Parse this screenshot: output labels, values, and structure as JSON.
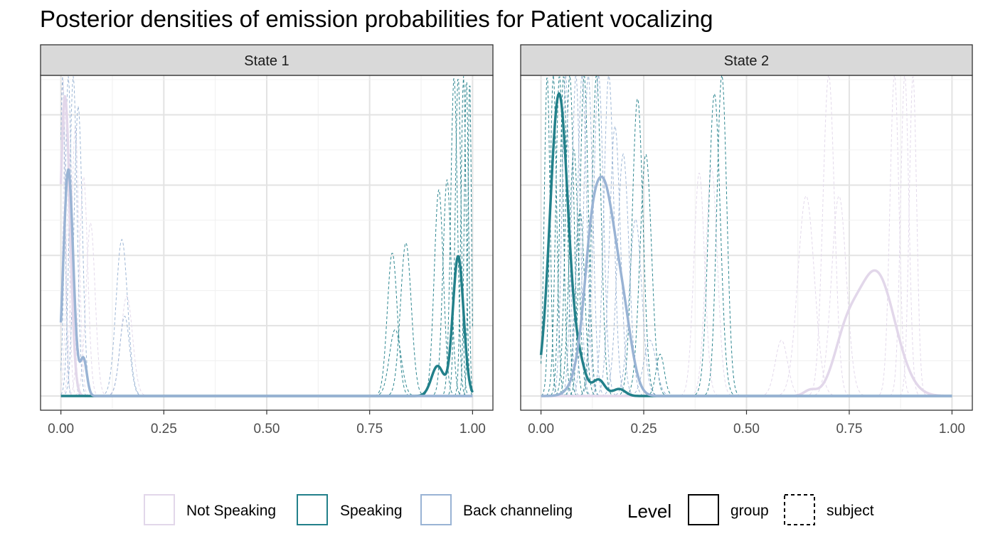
{
  "title": "Posterior densities of emission probabilities for Patient vocalizing",
  "chart_data": {
    "type": "line",
    "title": "Posterior densities of emission probabilities for Patient vocalizing",
    "xlim": [
      0,
      1
    ],
    "x_ticks": [
      "0.00",
      "0.25",
      "0.50",
      "0.75",
      "1.00"
    ],
    "y_ticks_shown": false,
    "grid": true,
    "legend": {
      "position": "bottom",
      "colors": [
        {
          "label": "Not Speaking",
          "color": "#e2d7ea"
        },
        {
          "label": "Speaking",
          "color": "#22808a"
        },
        {
          "label": "Back channeling",
          "color": "#99b3d4"
        }
      ],
      "level_title": "Level",
      "levels": [
        {
          "label": "group",
          "linetype": "solid"
        },
        {
          "label": "subject",
          "linetype": "dashed"
        }
      ]
    },
    "panels": [
      {
        "label": "State 1",
        "ylim": [
          0,
          9.5
        ],
        "group": [
          {
            "series": "Not Speaking",
            "peaks": [
              [
                0.01,
                9.0,
                0.012
              ]
            ]
          },
          {
            "series": "Speaking",
            "peaks": [
              [
                0.965,
                4.2,
                0.013
              ],
              [
                0.915,
                0.9,
                0.015
              ]
            ]
          },
          {
            "series": "Back channeling",
            "peaks": [
              [
                0.018,
                6.8,
                0.012
              ],
              [
                0.055,
                1.1,
                0.008
              ]
            ]
          }
        ],
        "subjects": [
          {
            "series": "Not Speaking",
            "peaks": [
              [
                0.005,
                9.6,
                0.006
              ],
              [
                0.012,
                8.8,
                0.007
              ],
              [
                0.022,
                7.3,
                0.008
              ],
              [
                0.035,
                8.1,
                0.009
              ],
              [
                0.055,
                6.6,
                0.01
              ],
              [
                0.072,
                5.2,
                0.011
              ],
              [
                0.16,
                3.0,
                0.014
              ]
            ]
          },
          {
            "series": "Speaking",
            "peaks": [
              [
                0.805,
                4.3,
                0.012
              ],
              [
                0.812,
                2.0,
                0.014
              ],
              [
                0.838,
                4.6,
                0.013
              ],
              [
                0.918,
                6.2,
                0.011
              ],
              [
                0.938,
                6.5,
                0.01
              ],
              [
                0.955,
                9.6,
                0.008
              ],
              [
                0.965,
                9.6,
                0.007
              ],
              [
                0.978,
                9.6,
                0.006
              ],
              [
                0.985,
                9.6,
                0.005
              ],
              [
                0.993,
                9.6,
                0.004
              ]
            ]
          },
          {
            "series": "Back channeling",
            "peaks": [
              [
                0.004,
                9.6,
                0.006
              ],
              [
                0.018,
                9.6,
                0.008
              ],
              [
                0.03,
                9.6,
                0.009
              ],
              [
                0.042,
                8.7,
                0.01
              ],
              [
                0.148,
                4.7,
                0.014
              ],
              [
                0.155,
                2.4,
                0.012
              ]
            ]
          }
        ]
      },
      {
        "label": "State 2",
        "ylim": [
          0,
          6.8
        ],
        "group": [
          {
            "series": "Not Speaking",
            "peaks": [
              [
                0.815,
                2.65,
                0.046
              ],
              [
                0.74,
                0.95,
                0.03
              ],
              [
                0.655,
                0.12,
                0.015
              ]
            ]
          },
          {
            "series": "Speaking",
            "peaks": [
              [
                0.044,
                6.5,
                0.022
              ],
              [
                0.095,
                0.55,
                0.015
              ],
              [
                0.14,
                0.35,
                0.015
              ],
              [
                0.19,
                0.15,
                0.015
              ]
            ]
          },
          {
            "series": "Back channeling",
            "peaks": [
              [
                0.15,
                4.6,
                0.034
              ],
              [
                0.205,
                0.8,
                0.02
              ],
              [
                0.12,
                0.6,
                0.015
              ]
            ]
          }
        ],
        "subjects": [
          {
            "series": "Not Speaking",
            "peaks": [
              [
                0.385,
                4.8,
                0.013
              ],
              [
                0.415,
                4.9,
                0.014
              ],
              [
                0.585,
                1.2,
                0.015
              ],
              [
                0.645,
                4.3,
                0.02
              ],
              [
                0.7,
                6.9,
                0.014
              ],
              [
                0.725,
                4.3,
                0.018
              ],
              [
                0.86,
                6.9,
                0.011
              ],
              [
                0.885,
                6.9,
                0.01
              ],
              [
                0.905,
                6.9,
                0.009
              ]
            ]
          },
          {
            "series": "Speaking",
            "peaks": [
              [
                0.015,
                6.9,
                0.007
              ],
              [
                0.03,
                6.9,
                0.008
              ],
              [
                0.045,
                6.9,
                0.009
              ],
              [
                0.055,
                6.9,
                0.009
              ],
              [
                0.07,
                6.9,
                0.01
              ],
              [
                0.08,
                5.3,
                0.011
              ],
              [
                0.095,
                4.0,
                0.011
              ],
              [
                0.105,
                6.9,
                0.01
              ],
              [
                0.135,
                6.9,
                0.011
              ],
              [
                0.235,
                6.4,
                0.013
              ],
              [
                0.255,
                5.2,
                0.014
              ],
              [
                0.29,
                0.9,
                0.01
              ],
              [
                0.422,
                6.5,
                0.014
              ],
              [
                0.44,
                6.9,
                0.012
              ]
            ]
          },
          {
            "series": "Back channeling",
            "peaks": [
              [
                0.06,
                6.9,
                0.009
              ],
              [
                0.085,
                6.9,
                0.01
              ],
              [
                0.1,
                6.9,
                0.011
              ],
              [
                0.115,
                6.9,
                0.011
              ],
              [
                0.14,
                6.9,
                0.012
              ],
              [
                0.165,
                6.9,
                0.012
              ],
              [
                0.18,
                5.8,
                0.013
              ],
              [
                0.2,
                5.2,
                0.014
              ],
              [
                0.23,
                3.8,
                0.015
              ],
              [
                0.265,
                1.2,
                0.015
              ]
            ]
          }
        ]
      }
    ]
  }
}
